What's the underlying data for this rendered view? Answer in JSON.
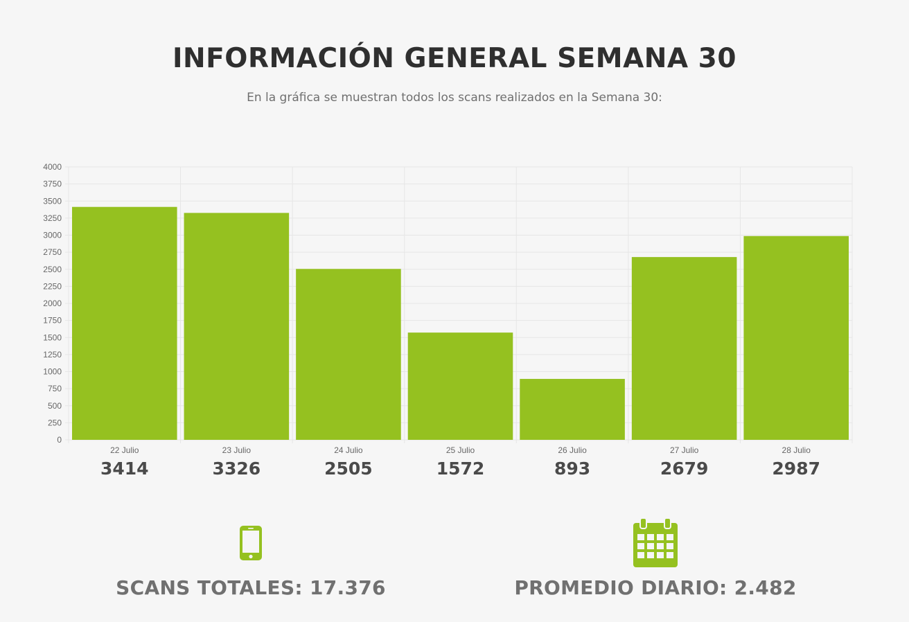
{
  "header": {
    "title": "INFORMACIÓN GENERAL SEMANA 30",
    "subtitle": "En la gráfica se muestran todos los scans realizados en la Semana 30:"
  },
  "colors": {
    "bar": "#95c120",
    "grid": "#e6e6e6",
    "tick_text": "#666666",
    "value_text": "#4a4a4a"
  },
  "chart_data": {
    "type": "bar",
    "categories": [
      "22 Julio",
      "23 Julio",
      "24 Julio",
      "25 Julio",
      "26 Julio",
      "27 Julio",
      "28 Julio"
    ],
    "values": [
      3414,
      3326,
      2505,
      1572,
      893,
      2679,
      2987
    ],
    "value_labels": [
      "3414",
      "3326",
      "2505",
      "1572",
      "893",
      "2679",
      "2987"
    ],
    "ylim": [
      0,
      4000
    ],
    "yticks": [
      0,
      250,
      500,
      750,
      1000,
      1250,
      1500,
      1750,
      2000,
      2250,
      2500,
      2750,
      3000,
      3250,
      3500,
      3750,
      4000
    ],
    "grid": true,
    "xlabel": "",
    "ylabel": ""
  },
  "stats": {
    "total": {
      "icon": "smartphone-icon",
      "label": "SCANS TOTALES: 17.376"
    },
    "average": {
      "icon": "calendar-icon",
      "label": "PROMEDIO DIARIO: 2.482"
    }
  }
}
